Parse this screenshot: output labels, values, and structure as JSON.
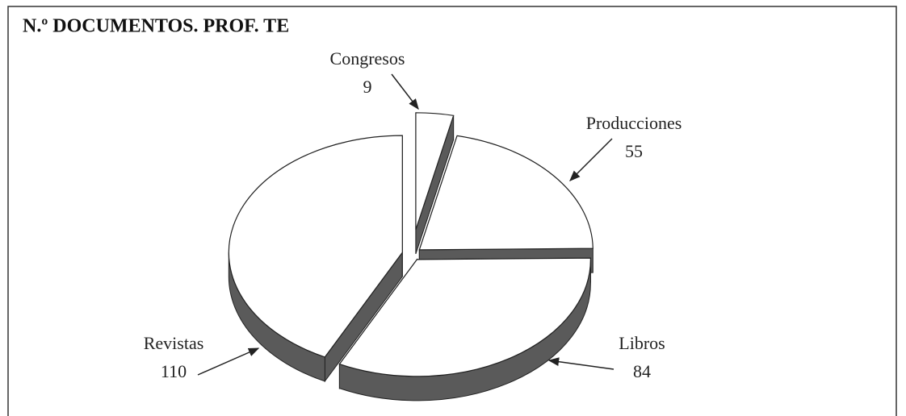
{
  "chart_data": {
    "type": "pie",
    "title": "N.º DOCUMENTOS. PROF. TE",
    "categories": [
      "Congresos",
      "Producciones",
      "Libros",
      "Revistas"
    ],
    "values": [
      9,
      55,
      84,
      110
    ]
  }
}
